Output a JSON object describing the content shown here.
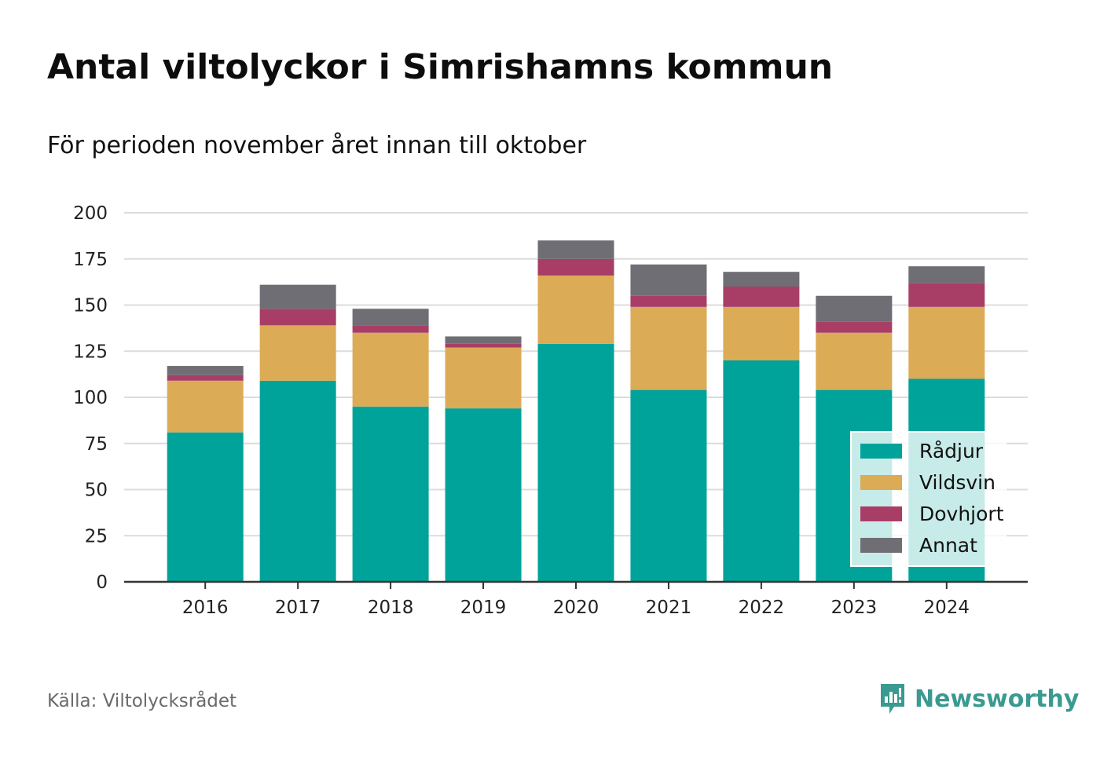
{
  "header": {
    "title": "Antal viltolyckor i Simrishamns kommun",
    "subtitle": "För perioden november året innan till oktober"
  },
  "footer": {
    "source": "Källa: Viltolycksrådet",
    "brand": "Newsworthy",
    "brand_icon": "newsworthy-logo-icon",
    "brand_color": "#3a9a91"
  },
  "chart_data": {
    "type": "bar",
    "stacked": true,
    "categories": [
      "2016",
      "2017",
      "2018",
      "2019",
      "2020",
      "2021",
      "2022",
      "2023",
      "2024"
    ],
    "series": [
      {
        "name": "Rådjur",
        "color": "#00a39a",
        "values": [
          81,
          109,
          95,
          94,
          129,
          104,
          120,
          104,
          110
        ]
      },
      {
        "name": "Vildsvin",
        "color": "#dbab56",
        "values": [
          28,
          30,
          40,
          33,
          37,
          45,
          29,
          31,
          39
        ]
      },
      {
        "name": "Dovhjort",
        "color": "#a83e66",
        "values": [
          3,
          9,
          4,
          2,
          9,
          6,
          11,
          6,
          13
        ]
      },
      {
        "name": "Annat",
        "color": "#6f6e74",
        "values": [
          5,
          13,
          9,
          4,
          10,
          17,
          8,
          14,
          9
        ]
      }
    ],
    "ylim": [
      0,
      200
    ],
    "yticks": [
      0,
      25,
      50,
      75,
      100,
      125,
      150,
      175,
      200
    ],
    "grid": true,
    "legend_position": "bottom-right",
    "xlabel": "",
    "ylabel": ""
  }
}
